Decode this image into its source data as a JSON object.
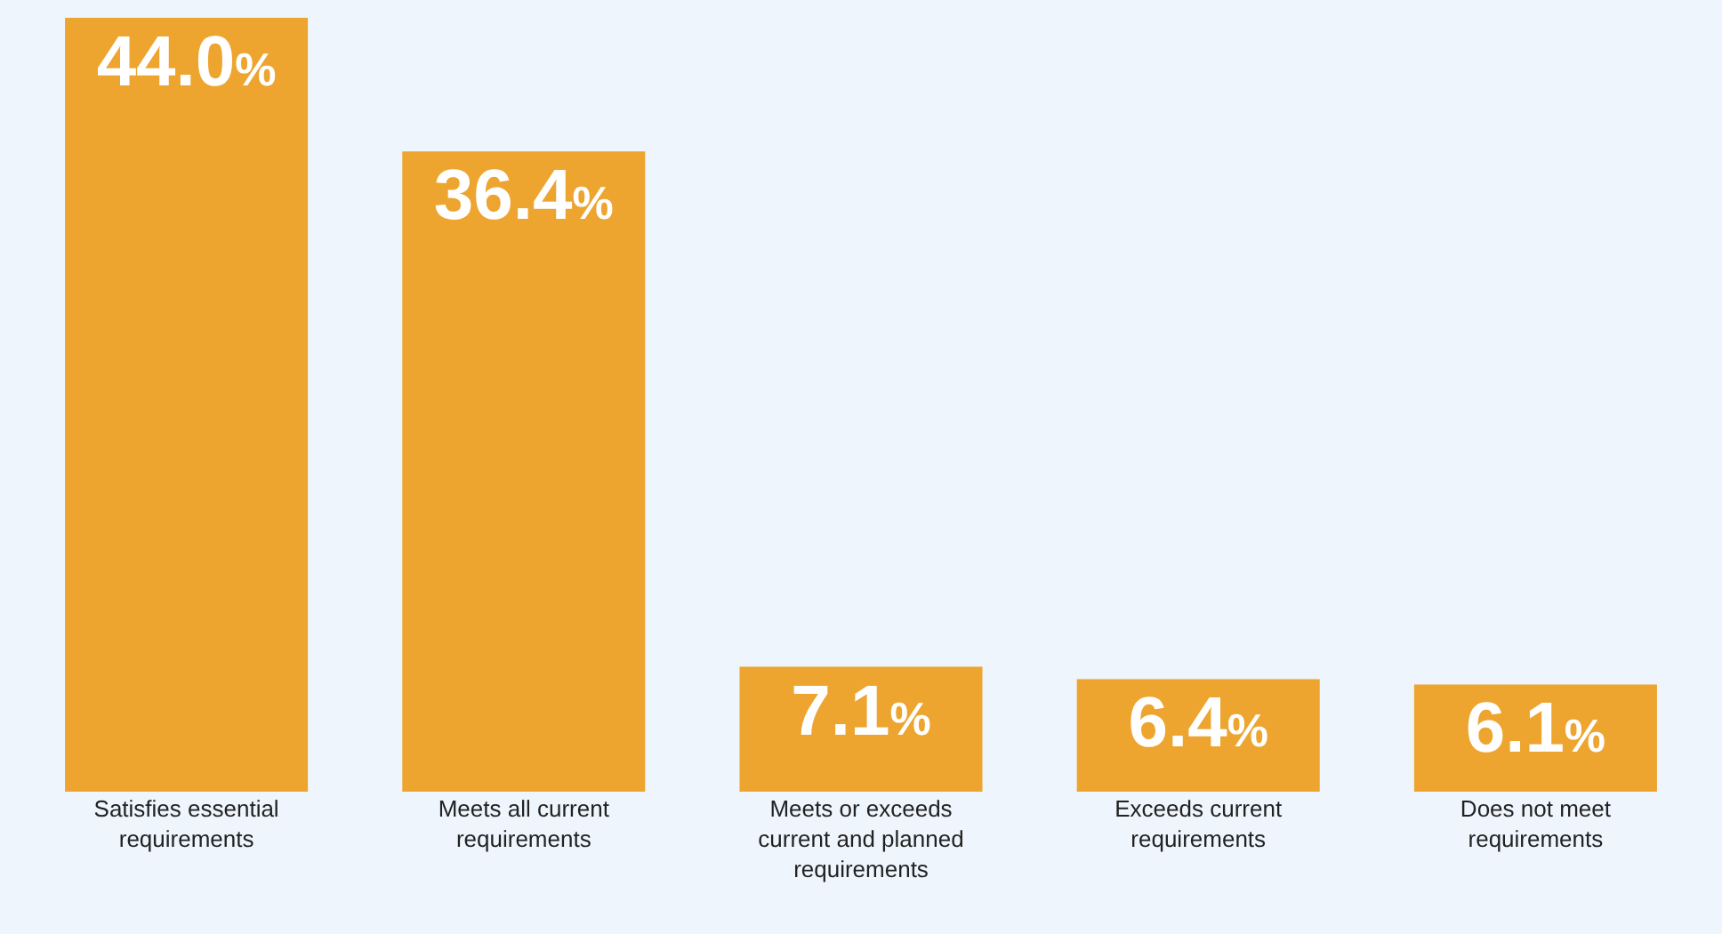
{
  "chart_data": {
    "type": "bar",
    "categories": [
      "Satisfies essential requirements",
      "Meets all current requirements",
      "Meets or exceeds current and planned requirements",
      "Exceeds current requirements",
      "Does not meet requirements"
    ],
    "values": [
      44.0,
      36.4,
      7.1,
      6.4,
      6.1
    ],
    "value_labels": [
      "44.0%",
      "36.4%",
      "7.1%",
      "6.4%",
      "6.1%"
    ],
    "color": "#eda52f"
  }
}
